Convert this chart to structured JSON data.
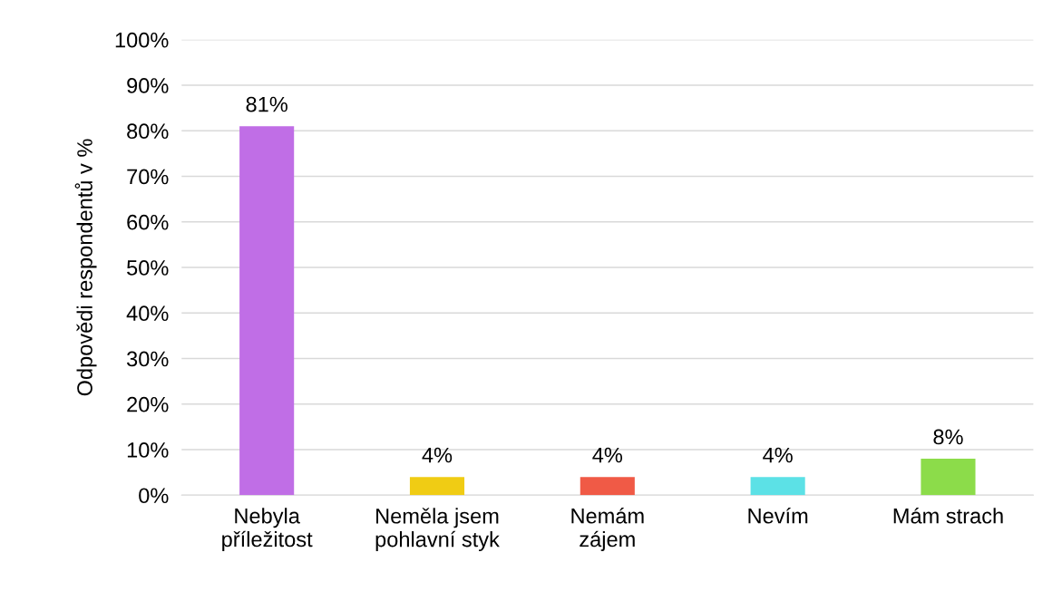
{
  "chart_data": {
    "type": "bar",
    "ylabel": "Odpovědi respondentů v %",
    "categories": [
      "Nebyla\npříležitost",
      "Neměla jsem\npohlavní styk",
      "Nemám\nzájem",
      "Nevím",
      "Mám strach"
    ],
    "values": [
      81,
      4,
      4,
      4,
      8
    ],
    "colors": [
      "#c06ee6",
      "#f0cc14",
      "#f05a46",
      "#5ce1e6",
      "#8cdc4a"
    ],
    "value_labels": [
      "81%",
      "4%",
      "4%",
      "4%",
      "8%"
    ],
    "ylim": [
      0,
      100
    ],
    "yticks": [
      {
        "value": 0,
        "label": "0%"
      },
      {
        "value": 10,
        "label": "10%"
      },
      {
        "value": 20,
        "label": "20%"
      },
      {
        "value": 30,
        "label": "30%"
      },
      {
        "value": 40,
        "label": "40%"
      },
      {
        "value": 50,
        "label": "50%"
      },
      {
        "value": 60,
        "label": "60%"
      },
      {
        "value": 70,
        "label": "70%"
      },
      {
        "value": 80,
        "label": "80%"
      },
      {
        "value": 90,
        "label": "90%"
      },
      {
        "value": 100,
        "label": "100%"
      }
    ],
    "grid": "y",
    "legend": false
  }
}
